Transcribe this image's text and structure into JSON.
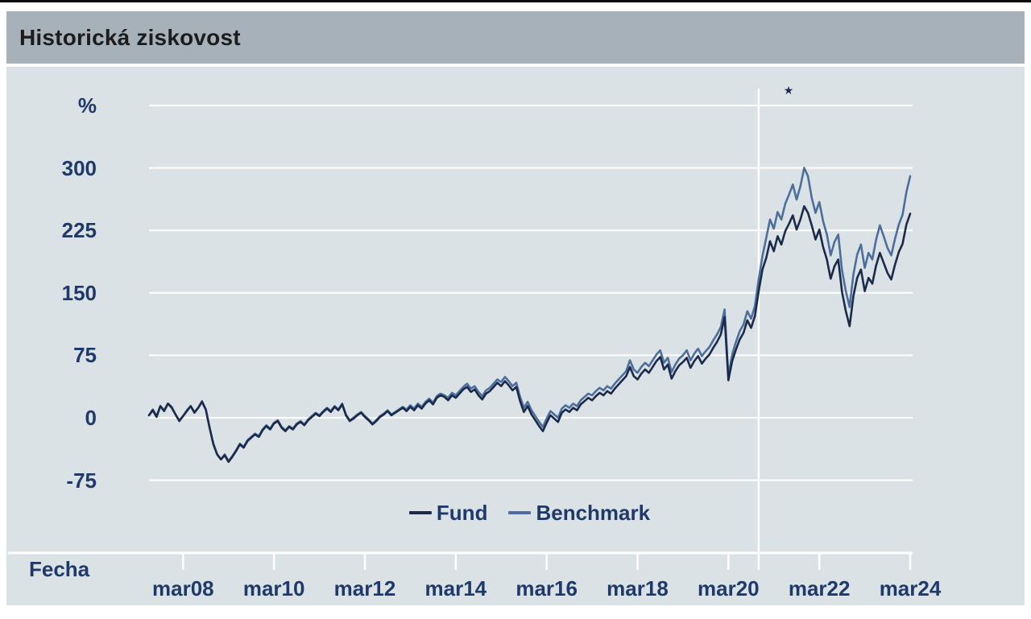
{
  "header": {
    "title": "Historická ziskovost"
  },
  "chart": {
    "x_axis_title": "Fecha",
    "unit_label": "%",
    "event_marker": "★"
  },
  "colors": {
    "top_rule": "#0c0c0c",
    "header_background": "#a7b1ba",
    "panel_background": "#dbe2e6",
    "grid": "#ffffff",
    "axis_text": "#20396b",
    "fund_line": "#1b2a4a",
    "benchmark_line": "#4c6e9c"
  },
  "chart_data": {
    "type": "line",
    "title": "Historická ziskovost",
    "ylabel": "%",
    "xlabel": "Fecha",
    "grid": true,
    "legend_position": "bottom-center",
    "x_start": "2007-06",
    "x_end": "2024-03",
    "x_interval": "monthly",
    "ylim": [
      -160,
      375
    ],
    "yticks": [
      {
        "value": 375,
        "label": "%"
      },
      {
        "value": 300,
        "label": "300"
      },
      {
        "value": 225,
        "label": "225"
      },
      {
        "value": 150,
        "label": "150"
      },
      {
        "value": 75,
        "label": "75"
      },
      {
        "value": 0,
        "label": "0"
      },
      {
        "value": -75,
        "label": "-75"
      }
    ],
    "xticks": [
      {
        "label": "mar08",
        "month_index": 9
      },
      {
        "label": "mar10",
        "month_index": 33
      },
      {
        "label": "mar12",
        "month_index": 57
      },
      {
        "label": "mar14",
        "month_index": 81
      },
      {
        "label": "mar16",
        "month_index": 105
      },
      {
        "label": "mar18",
        "month_index": 129
      },
      {
        "label": "mar20",
        "month_index": 153
      },
      {
        "label": "mar22",
        "month_index": 177
      },
      {
        "label": "mar24",
        "month_index": 201
      }
    ],
    "event_line": {
      "month_index": 161,
      "marker": "★"
    },
    "series": [
      {
        "name": "Fund",
        "color": "#1b2a4a",
        "values": [
          3,
          9,
          1,
          14,
          8,
          17,
          12,
          4,
          -4,
          2,
          8,
          14,
          6,
          12,
          19,
          10,
          -12,
          -32,
          -44,
          -50,
          -45,
          -53,
          -47,
          -40,
          -32,
          -36,
          -28,
          -24,
          -20,
          -23,
          -15,
          -10,
          -14,
          -7,
          -4,
          -12,
          -16,
          -11,
          -14,
          -8,
          -5,
          -9,
          -3,
          1,
          5,
          2,
          7,
          11,
          7,
          13,
          9,
          16,
          3,
          -4,
          -1,
          3,
          6,
          1,
          -3,
          -8,
          -4,
          1,
          4,
          8,
          3,
          6,
          9,
          12,
          8,
          13,
          9,
          15,
          11,
          17,
          21,
          16,
          24,
          27,
          25,
          21,
          27,
          24,
          29,
          34,
          37,
          31,
          34,
          27,
          22,
          29,
          32,
          37,
          42,
          38,
          44,
          39,
          33,
          37,
          20,
          7,
          14,
          4,
          -3,
          -10,
          -16,
          -6,
          3,
          -1,
          -5,
          6,
          10,
          7,
          12,
          9,
          16,
          20,
          24,
          21,
          26,
          30,
          27,
          32,
          29,
          35,
          40,
          45,
          50,
          61,
          50,
          46,
          53,
          58,
          54,
          61,
          68,
          73,
          58,
          64,
          47,
          56,
          63,
          67,
          72,
          60,
          68,
          74,
          65,
          71,
          76,
          84,
          91,
          100,
          121,
          45,
          68,
          82,
          94,
          102,
          117,
          108,
          122,
          152,
          178,
          192,
          212,
          200,
          218,
          208,
          224,
          233,
          243,
          226,
          238,
          254,
          246,
          231,
          214,
          226,
          205,
          190,
          167,
          182,
          190,
          151,
          128,
          110,
          146,
          168,
          178,
          152,
          168,
          161,
          183,
          198,
          186,
          174,
          166,
          184,
          199,
          209,
          232,
          245
        ]
      },
      {
        "name": "Benchmark",
        "color": "#4c6e9c",
        "values": [
          3,
          10,
          2,
          14,
          9,
          17,
          13,
          4,
          -3,
          2,
          9,
          14,
          7,
          12,
          20,
          10,
          -12,
          -31,
          -44,
          -50,
          -44,
          -52,
          -46,
          -39,
          -31,
          -35,
          -27,
          -23,
          -19,
          -22,
          -14,
          -9,
          -13,
          -6,
          -3,
          -11,
          -15,
          -10,
          -13,
          -7,
          -4,
          -8,
          -2,
          2,
          6,
          3,
          8,
          12,
          8,
          14,
          10,
          17,
          4,
          -3,
          0,
          4,
          7,
          2,
          -2,
          -7,
          -3,
          2,
          5,
          9,
          4,
          7,
          10,
          13,
          10,
          15,
          11,
          17,
          13,
          19,
          23,
          18,
          26,
          29,
          27,
          24,
          30,
          27,
          32,
          37,
          41,
          35,
          38,
          31,
          26,
          33,
          36,
          41,
          46,
          43,
          49,
          44,
          38,
          42,
          25,
          12,
          19,
          9,
          2,
          -5,
          -11,
          -1,
          8,
          4,
          0,
          11,
          15,
          12,
          17,
          14,
          21,
          25,
          29,
          27,
          32,
          36,
          33,
          38,
          35,
          41,
          46,
          51,
          56,
          69,
          58,
          54,
          61,
          66,
          62,
          69,
          76,
          81,
          66,
          72,
          55,
          64,
          71,
          75,
          81,
          69,
          77,
          83,
          74,
          80,
          85,
          93,
          100,
          109,
          130,
          50,
          76,
          91,
          104,
          112,
          128,
          119,
          134,
          166,
          194,
          216,
          238,
          227,
          247,
          238,
          257,
          268,
          280,
          262,
          278,
          300,
          290,
          264,
          246,
          259,
          236,
          220,
          195,
          211,
          220,
          177,
          152,
          133,
          172,
          196,
          208,
          180,
          198,
          190,
          214,
          231,
          218,
          204,
          195,
          215,
          232,
          244,
          271,
          290
        ]
      }
    ]
  }
}
